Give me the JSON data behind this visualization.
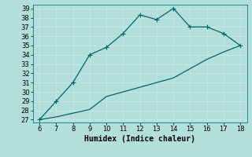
{
  "xlabel": "Humidex (Indice chaleur)",
  "background_color": "#b2dfdb",
  "grid_color": "#c8e8e4",
  "line_color": "#006666",
  "xlim": [
    5.6,
    18.4
  ],
  "ylim": [
    26.7,
    39.4
  ],
  "xticks": [
    6,
    7,
    8,
    9,
    10,
    11,
    12,
    13,
    14,
    15,
    16,
    17,
    18
  ],
  "yticks": [
    27,
    28,
    29,
    30,
    31,
    32,
    33,
    34,
    35,
    36,
    37,
    38,
    39
  ],
  "series1_x": [
    6,
    7,
    8,
    9,
    10,
    11,
    12,
    13,
    14,
    15,
    16,
    17,
    18
  ],
  "series1_y": [
    27,
    29,
    31,
    34,
    34.8,
    36.3,
    38.3,
    37.8,
    39.0,
    37.0,
    37.0,
    36.3,
    35.0
  ],
  "series2_x": [
    6,
    7,
    8,
    9,
    10,
    11,
    12,
    13,
    14,
    15,
    16,
    17,
    18
  ],
  "series2_y": [
    27,
    27.3,
    27.7,
    28.1,
    29.5,
    30.0,
    30.5,
    31.0,
    31.5,
    32.5,
    33.5,
    34.3,
    35.0
  ],
  "marker1": "+",
  "marker2": "None",
  "markersize": 4,
  "linewidth": 0.9,
  "tick_fontsize": 6,
  "xlabel_fontsize": 7
}
